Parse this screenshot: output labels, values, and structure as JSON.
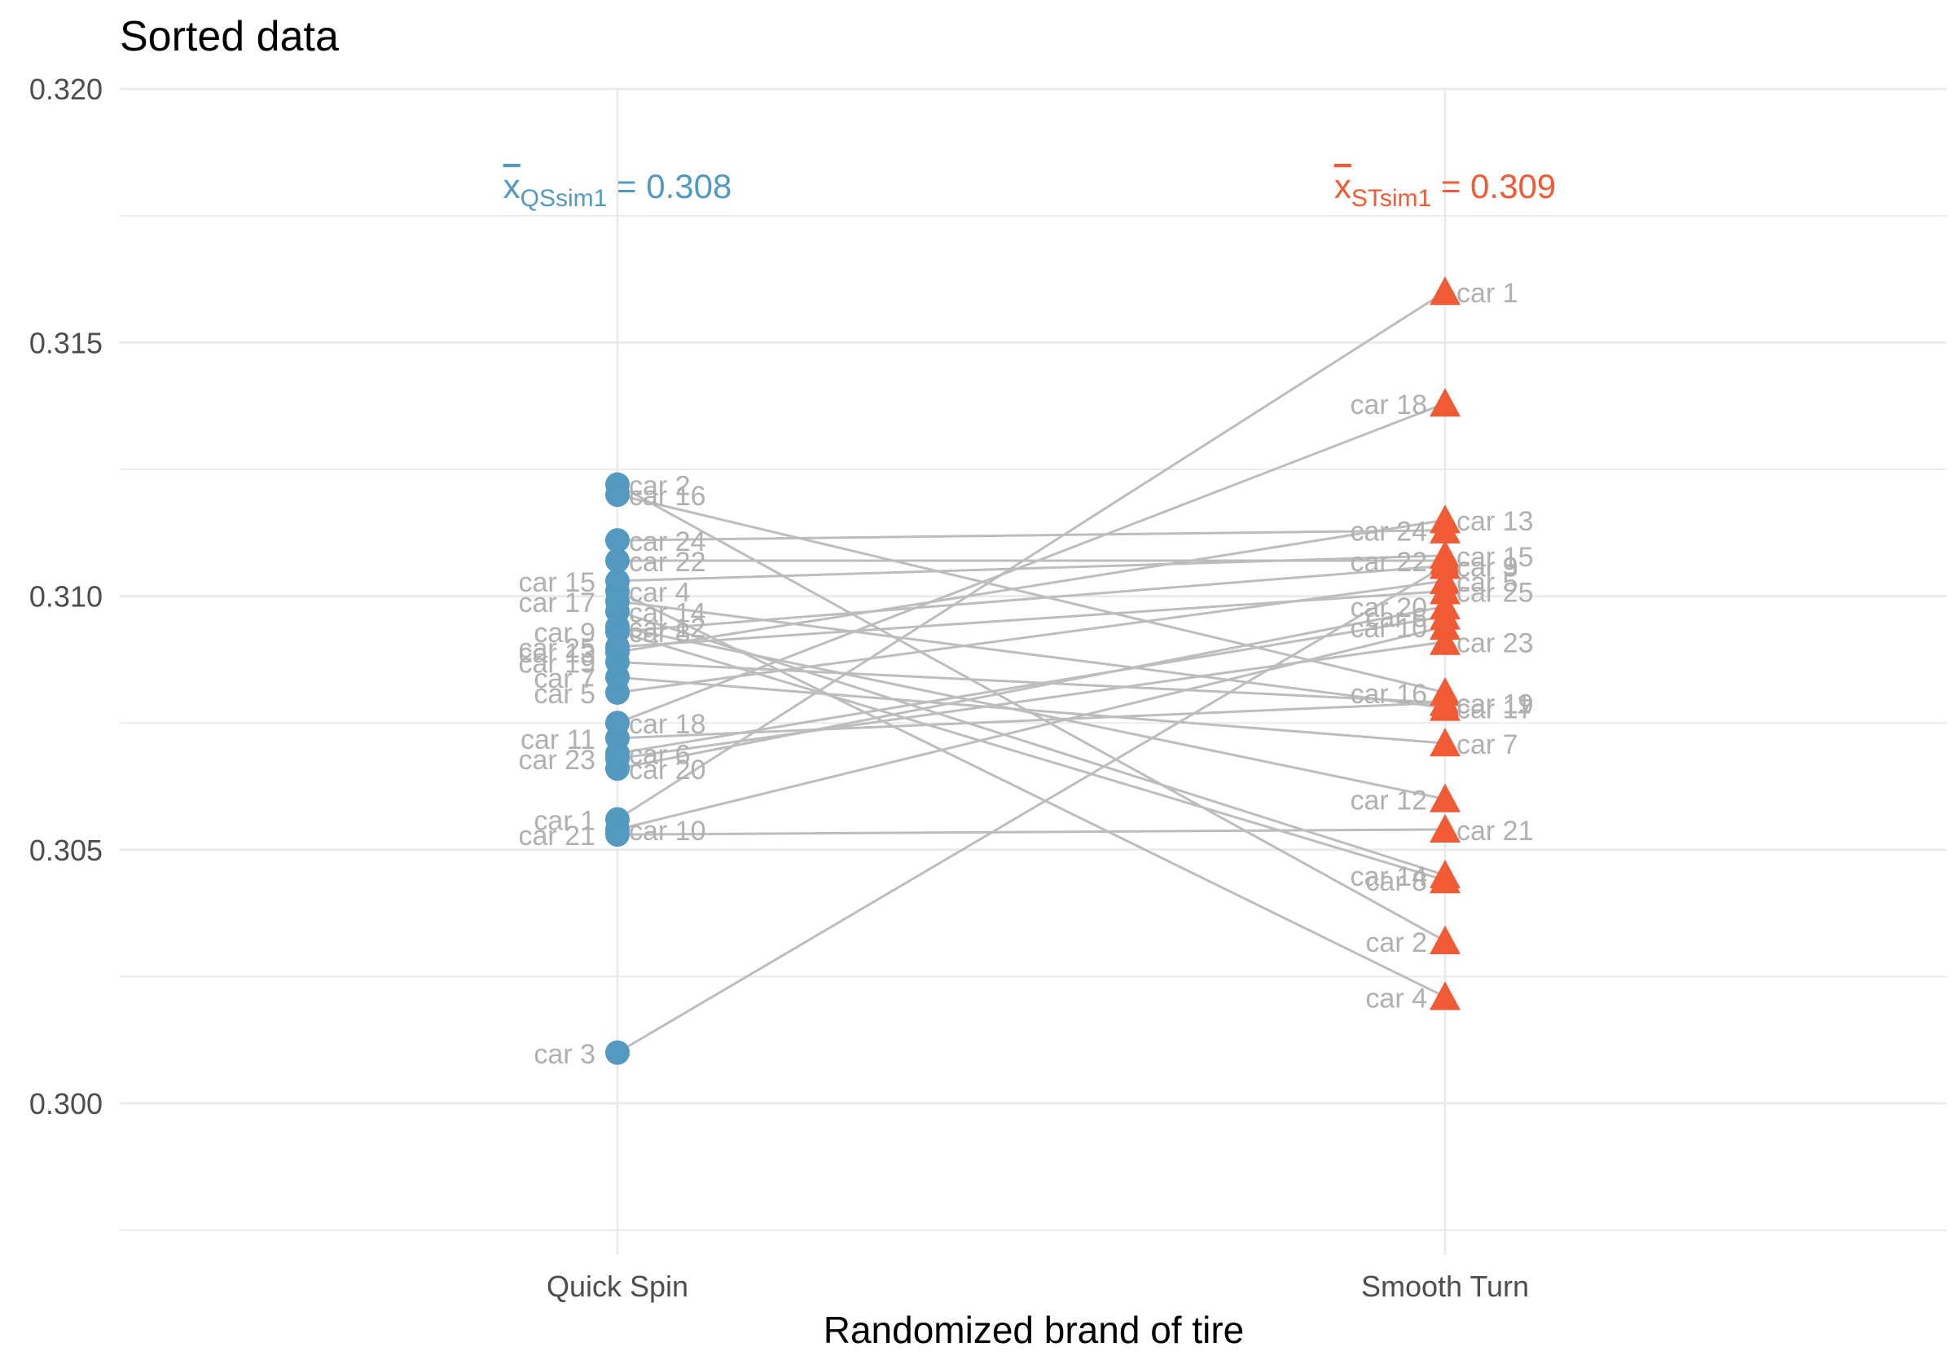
{
  "chart_data": {
    "type": "scatter",
    "title": "Sorted data",
    "xlabel": "Randomized brand of tire",
    "ylabel": "",
    "ylim": [
      0.2975,
      0.3205
    ],
    "yticks": [
      "0.300",
      "0.305",
      "0.310",
      "0.315",
      "0.320"
    ],
    "ytick_values": [
      0.3,
      0.305,
      0.31,
      0.315,
      0.32
    ],
    "categories": [
      "Quick Spin",
      "Smooth Turn"
    ],
    "grid": true,
    "legend": "none",
    "colors": {
      "quick_spin": "#5399C0",
      "smooth_turn": "#F05A35",
      "lines": "#BDBDBD",
      "labels": "#B0B0B0",
      "grid": "#EBEBEB"
    },
    "markers": {
      "quick_spin": "circle",
      "smooth_turn": "triangle"
    },
    "annotations": [
      {
        "category": "Quick Spin",
        "x": "x",
        "sub": "QSsim1",
        "rest": " = 0.308"
      },
      {
        "category": "Smooth Turn",
        "x": "x",
        "sub": "STsim1",
        "rest": " = 0.309"
      }
    ],
    "pairs": [
      {
        "car": "car 1",
        "quick_spin": 0.3056,
        "smooth_turn": 0.316
      },
      {
        "car": "car 2",
        "quick_spin": 0.3122,
        "smooth_turn": 0.3032
      },
      {
        "car": "car 3",
        "quick_spin": 0.301,
        "smooth_turn": 0.3106
      },
      {
        "car": "car 4",
        "quick_spin": 0.3101,
        "smooth_turn": 0.3021
      },
      {
        "car": "car 5",
        "quick_spin": 0.3081,
        "smooth_turn": 0.3103
      },
      {
        "car": "car 6",
        "quick_spin": 0.3069,
        "smooth_turn": 0.3096
      },
      {
        "car": "car 7",
        "quick_spin": 0.3084,
        "smooth_turn": 0.3071
      },
      {
        "car": "car 8",
        "quick_spin": 0.3093,
        "smooth_turn": 0.3044
      },
      {
        "car": "car 9",
        "quick_spin": 0.3093,
        "smooth_turn": 0.3106
      },
      {
        "car": "car 10",
        "quick_spin": 0.3054,
        "smooth_turn": 0.3094
      },
      {
        "car": "car 11",
        "quick_spin": 0.3072,
        "smooth_turn": 0.3079
      },
      {
        "car": "car 12",
        "quick_spin": 0.3094,
        "smooth_turn": 0.306
      },
      {
        "car": "car 13",
        "quick_spin": 0.3089,
        "smooth_turn": 0.3115
      },
      {
        "car": "car 14",
        "quick_spin": 0.3097,
        "smooth_turn": 0.3045
      },
      {
        "car": "car 15",
        "quick_spin": 0.3103,
        "smooth_turn": 0.3108
      },
      {
        "car": "car 16",
        "quick_spin": 0.312,
        "smooth_turn": 0.3081
      },
      {
        "car": "car 17",
        "quick_spin": 0.3099,
        "smooth_turn": 0.3078
      },
      {
        "car": "car 18",
        "quick_spin": 0.3075,
        "smooth_turn": 0.3138
      },
      {
        "car": "car 19",
        "quick_spin": 0.3087,
        "smooth_turn": 0.3079
      },
      {
        "car": "car 20",
        "quick_spin": 0.3066,
        "smooth_turn": 0.3098
      },
      {
        "car": "car 21",
        "quick_spin": 0.3053,
        "smooth_turn": 0.3054
      },
      {
        "car": "car 22",
        "quick_spin": 0.3107,
        "smooth_turn": 0.3107
      },
      {
        "car": "car 23",
        "quick_spin": 0.3068,
        "smooth_turn": 0.3091
      },
      {
        "car": "car 24",
        "quick_spin": 0.3111,
        "smooth_turn": 0.3113
      },
      {
        "car": "car 25",
        "quick_spin": 0.309,
        "smooth_turn": 0.3101
      }
    ]
  }
}
